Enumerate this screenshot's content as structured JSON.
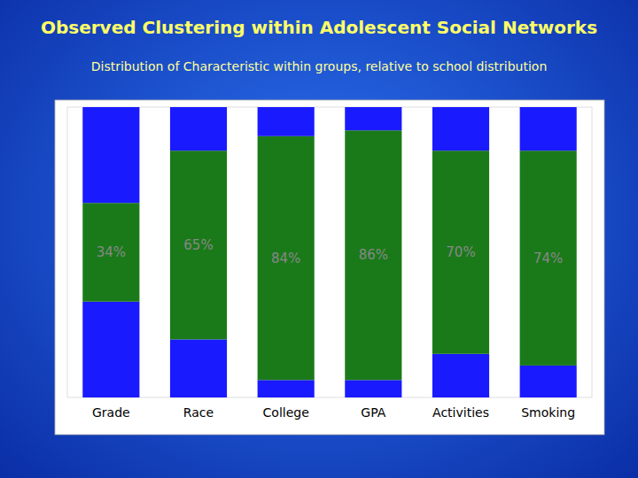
{
  "chart_data": {
    "type": "bar",
    "title": "Observed Clustering within Adolescent Social Networks",
    "subtitle": "Distribution of Characteristic within groups, relative to school distribution",
    "categories": [
      "Grade",
      "Race",
      "College",
      "GPA",
      "Activities",
      "Smoking"
    ],
    "series": [
      {
        "color": "#1a1aff",
        "values": [
          33,
          20,
          6,
          6,
          15,
          11
        ]
      },
      {
        "color": "#1a7a1a",
        "values": [
          34,
          65,
          84,
          86,
          70,
          74
        ],
        "value_labels": [
          "34%",
          "65%",
          "84%",
          "86%",
          "70%",
          "74%"
        ]
      },
      {
        "color": "#1a1aff",
        "values": [
          33,
          15,
          10,
          8,
          15,
          15
        ]
      }
    ],
    "stacked": true,
    "data_labels": true,
    "ylim": [
      0,
      100
    ],
    "grid": false,
    "tick_labels": "x"
  }
}
